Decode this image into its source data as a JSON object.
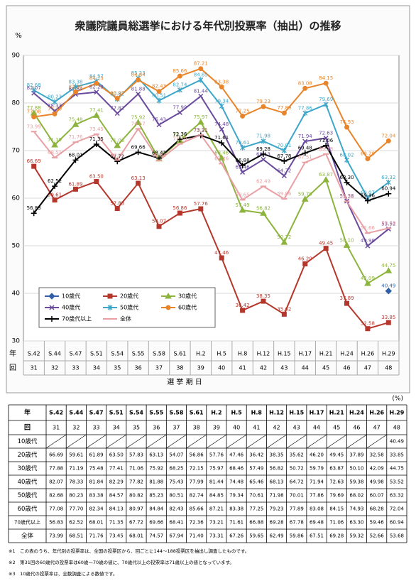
{
  "chart_data": {
    "type": "line",
    "title": "衆議院議員総選挙における年代別投票率（抽出）の推移",
    "y_unit_label": "%",
    "x_row_labels": [
      "年",
      "回"
    ],
    "xlabel": "選 挙 期 日",
    "categories": [
      "S.42",
      "S.44",
      "S.47",
      "S.51",
      "S.54",
      "S.55",
      "S.58",
      "S.61",
      "H.2",
      "H.5",
      "H.8",
      "H.12",
      "H.15",
      "H.17",
      "H.21",
      "H.24",
      "H.26",
      "H.29"
    ],
    "categories_sub": [
      "31",
      "32",
      "33",
      "34",
      "35",
      "36",
      "37",
      "38",
      "39",
      "40",
      "41",
      "42",
      "43",
      "44",
      "45",
      "46",
      "47",
      "48"
    ],
    "ylim": [
      30,
      90
    ],
    "yticks": [
      30,
      40,
      50,
      60,
      70,
      80,
      90
    ],
    "grid": true,
    "legend": "lower left",
    "series": [
      {
        "name": "10歳代",
        "color": "#2f5fa8",
        "marker": "diamond",
        "values": [
          null,
          null,
          null,
          null,
          null,
          null,
          null,
          null,
          null,
          null,
          null,
          null,
          null,
          null,
          null,
          null,
          null,
          40.49
        ]
      },
      {
        "name": "20歳代",
        "color": "#b5372c",
        "marker": "square",
        "values": [
          66.69,
          59.61,
          61.89,
          63.5,
          57.83,
          63.13,
          54.07,
          56.86,
          57.76,
          47.46,
          36.42,
          38.35,
          35.62,
          46.2,
          49.45,
          37.89,
          32.58,
          33.85
        ],
        "value_labels": [
          "66.69",
          "59.61",
          "61.89",
          "63.50",
          "57.83",
          "63.13",
          "54.07",
          "56.86",
          "57.76",
          "47.46",
          "36.42",
          "38.35",
          "35.62",
          "46.20",
          "49.45",
          "37.89",
          "32.58",
          "33.85"
        ]
      },
      {
        "name": "30歳代",
        "color": "#8cb43c",
        "marker": "triangle",
        "values": [
          77.88,
          71.19,
          75.48,
          77.41,
          71.06,
          75.92,
          68.25,
          72.15,
          75.97,
          68.46,
          57.49,
          56.82,
          50.72,
          59.79,
          63.87,
          50.1,
          42.09,
          44.75
        ],
        "value_labels": [
          "77.88",
          "71.19",
          "75.48",
          "77.41",
          "71.06",
          "75.92",
          "68.25",
          "72.15",
          "75.97",
          "68.46",
          "57.49",
          "56.82",
          "50.72",
          "59.79",
          "63.87",
          "50.10",
          "42.09",
          "44.75"
        ]
      },
      {
        "name": "40歳代",
        "color": "#6a4a9c",
        "marker": "x",
        "values": [
          82.07,
          78.33,
          81.84,
          82.29,
          77.82,
          81.88,
          75.43,
          77.99,
          81.44,
          74.48,
          65.46,
          68.13,
          64.72,
          71.94,
          72.63,
          59.38,
          49.98,
          53.52
        ]
      },
      {
        "name": "50歳代",
        "color": "#3ea6c8",
        "marker": "star",
        "values": [
          82.68,
          80.23,
          83.38,
          84.57,
          80.82,
          85.23,
          80.51,
          82.74,
          84.85,
          79.34,
          70.61,
          71.98,
          70.01,
          77.86,
          79.69,
          68.02,
          60.07,
          63.32
        ]
      },
      {
        "name": "60歳代",
        "color": "#e8852a",
        "marker": "circle",
        "values": [
          77.08,
          77.7,
          82.34,
          84.13,
          80.97,
          84.84,
          82.43,
          85.66,
          87.21,
          83.38,
          77.25,
          79.23,
          77.89,
          83.08,
          84.15,
          74.93,
          68.28,
          72.04
        ],
        "value_labels": [
          "77.08",
          "77.70",
          "82.34",
          "84.13",
          "80.97",
          "84.84",
          "82.43",
          "85.66",
          "87.21",
          "83.38",
          "77.25",
          "79.23",
          "77.89",
          "83.08",
          "84.15",
          "74.93",
          "68.28",
          "72.04"
        ]
      },
      {
        "name": "70歳代以上",
        "color": "#000000",
        "marker": "plus",
        "values": [
          56.83,
          62.52,
          68.01,
          71.35,
          67.72,
          69.66,
          68.41,
          72.36,
          73.21,
          71.61,
          66.88,
          69.28,
          67.78,
          69.48,
          71.06,
          63.3,
          59.46,
          60.94
        ],
        "value_labels": [
          "56.83",
          "62.52",
          "68.01",
          "71.35",
          "67.72",
          "69.66",
          "68.41",
          "72.36",
          "73.21",
          "71.61",
          "66.88",
          "69.28",
          "67.78",
          "69.48",
          "71.06",
          "63.30",
          "59.46",
          "60.94"
        ]
      },
      {
        "name": "全体",
        "color": "#e8a0a4",
        "marker": "dash",
        "values": [
          73.99,
          68.51,
          71.76,
          73.45,
          68.01,
          74.57,
          67.94,
          71.4,
          73.31,
          67.26,
          59.65,
          62.49,
          59.86,
          67.51,
          69.28,
          59.32,
          52.66,
          53.68
        ],
        "value_labels": [
          "73.99",
          "68.51",
          "71.76",
          "73.45",
          "68.01",
          "74.57",
          "67.94",
          "71.40",
          "73.31",
          "67.26",
          "59.65",
          "62.49",
          "59.86",
          "67.51",
          "69.28",
          "59.32",
          "52.66",
          "53.68"
        ]
      }
    ],
    "table_unit": "(%)",
    "notes": [
      "※1　この表のうち、年代別の投票率は、全国の投票区から、回ごとに144～188投票区を抽出し調査したものです。",
      "※2　第31回の60歳代の投票率は60歳～70歳の値に、70歳代以上の投票率は71歳以上の値となっています。",
      "※3　10歳代の投票率は、全数調査による数値です。"
    ]
  }
}
